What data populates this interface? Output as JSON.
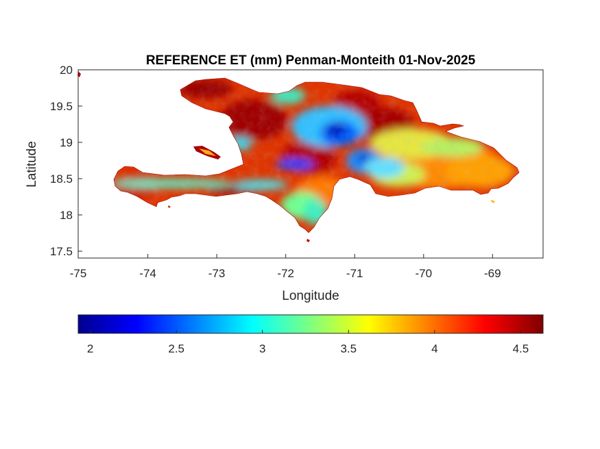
{
  "figure": {
    "title": "REFERENCE ET (mm) Penman-Monteith 01-Nov-2025",
    "xlabel": "Longitude",
    "ylabel": "Latitude"
  },
  "map": {
    "region": "Hispaniola",
    "xlim": [
      -75,
      -68.25
    ],
    "ylim": [
      17.4,
      20
    ],
    "x_ticks": [
      "-75",
      "-74",
      "-73",
      "-72",
      "-71",
      "-70",
      "-69"
    ],
    "x_tick_values": [
      -75,
      -74,
      -73,
      -72,
      -71,
      -70,
      -69
    ],
    "y_ticks": [
      "20",
      "19.5",
      "19",
      "18.5",
      "18",
      "17.5"
    ],
    "y_tick_values": [
      20,
      19.5,
      19,
      18.5,
      18,
      17.5
    ],
    "colormap": "jet"
  },
  "colorbar": {
    "range": [
      1.93,
      4.63
    ],
    "tick_labels": [
      "2",
      "2.5",
      "3",
      "3.5",
      "4",
      "4.5"
    ],
    "tick_values": [
      2,
      2.5,
      3,
      3.5,
      4,
      4.5
    ],
    "colors": [
      "#00008f",
      "#0000ff",
      "#00ffff",
      "#ffff00",
      "#ff0000",
      "#800000"
    ]
  }
}
